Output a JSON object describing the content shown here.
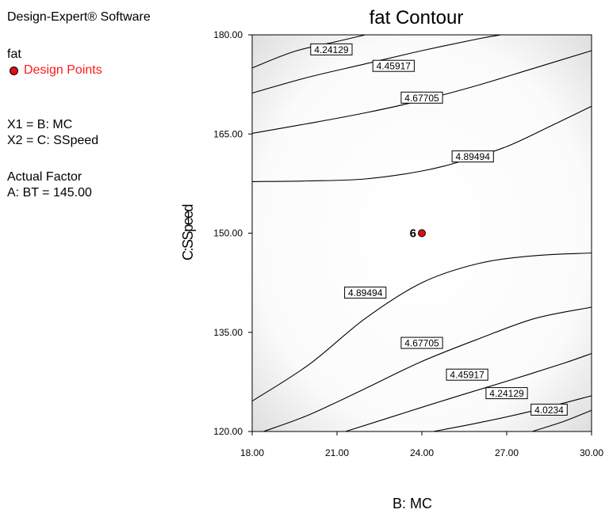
{
  "sidebar": {
    "software": "Design-Expert® Software",
    "response": "fat",
    "legend_label": "Design Points",
    "x1": "X1 = B: MC",
    "x2": "X2 = C: SSpeed",
    "actual_factor_title": "Actual Factor",
    "actual_factor_value": "A: BT = 145.00"
  },
  "colors": {
    "design_point": "#e01010",
    "legend_text": "#ff1a1a",
    "contour": "#000000"
  },
  "chart_data": {
    "type": "contour",
    "title": "fat Contour",
    "xlabel": "B: MC",
    "ylabel": "C:SSpeed",
    "xlim": [
      18,
      30
    ],
    "ylim": [
      120,
      180
    ],
    "xticks": [
      "18.00",
      "21.00",
      "24.00",
      "27.00",
      "30.00"
    ],
    "yticks": [
      "120.00",
      "135.00",
      "150.00",
      "165.00",
      "180.00"
    ],
    "contours": [
      {
        "level": "4.24129",
        "points": [
          [
            18.0,
            175.0
          ],
          [
            19.5,
            177.5
          ],
          [
            21.0,
            179.0
          ],
          [
            22.0,
            180.0
          ]
        ]
      },
      {
        "level": "4.45917",
        "points": [
          [
            18.0,
            171.2
          ],
          [
            20.0,
            173.6
          ],
          [
            22.0,
            175.6
          ],
          [
            24.0,
            177.6
          ],
          [
            26.0,
            179.4
          ],
          [
            26.8,
            180.0
          ]
        ]
      },
      {
        "level": "4.67705",
        "points": [
          [
            18.0,
            165.1
          ],
          [
            20.0,
            166.6
          ],
          [
            22.0,
            168.2
          ],
          [
            24.0,
            170.1
          ],
          [
            26.0,
            172.4
          ],
          [
            28.0,
            175.0
          ],
          [
            30.0,
            177.6
          ]
        ]
      },
      {
        "level": "4.89494",
        "points": [
          [
            18.0,
            157.8
          ],
          [
            20.0,
            157.9
          ],
          [
            22.0,
            158.2
          ],
          [
            24.0,
            159.4
          ],
          [
            25.5,
            161.0
          ],
          [
            27.0,
            163.1
          ],
          [
            28.5,
            166.1
          ],
          [
            30.0,
            169.2
          ]
        ]
      },
      {
        "level": "4.89494",
        "points": [
          [
            18.0,
            124.6
          ],
          [
            20.0,
            130.1
          ],
          [
            22.0,
            137.1
          ],
          [
            24.0,
            142.5
          ],
          [
            26.0,
            145.4
          ],
          [
            28.0,
            146.6
          ],
          [
            30.0,
            147.0
          ]
        ]
      },
      {
        "level": "4.67705",
        "points": [
          [
            18.4,
            120.0
          ],
          [
            20.0,
            122.5
          ],
          [
            22.0,
            126.5
          ],
          [
            24.0,
            130.6
          ],
          [
            26.0,
            134.0
          ],
          [
            28.0,
            137.1
          ],
          [
            30.0,
            138.8
          ]
        ]
      },
      {
        "level": "4.45917",
        "points": [
          [
            21.3,
            120.0
          ],
          [
            23.0,
            122.3
          ],
          [
            25.0,
            125.0
          ],
          [
            27.0,
            127.6
          ],
          [
            29.0,
            130.3
          ],
          [
            30.0,
            131.8
          ]
        ]
      },
      {
        "level": "4.24129",
        "points": [
          [
            24.4,
            120.0
          ],
          [
            26.0,
            121.3
          ],
          [
            28.0,
            123.2
          ],
          [
            30.0,
            125.4
          ]
        ]
      },
      {
        "level": "4.0234",
        "points": [
          [
            27.9,
            120.0
          ],
          [
            29.0,
            121.5
          ],
          [
            30.0,
            123.2
          ]
        ]
      }
    ],
    "contour_labels": [
      {
        "text": "4.24129",
        "x": 20.8,
        "y": 177.8
      },
      {
        "text": "4.45917",
        "x": 23.0,
        "y": 175.3
      },
      {
        "text": "4.67705",
        "x": 24.0,
        "y": 170.5
      },
      {
        "text": "4.89494",
        "x": 25.8,
        "y": 161.6
      },
      {
        "text": "4.89494",
        "x": 22.0,
        "y": 141.0
      },
      {
        "text": "4.67705",
        "x": 24.0,
        "y": 133.4
      },
      {
        "text": "4.45917",
        "x": 25.6,
        "y": 128.6
      },
      {
        "text": "4.24129",
        "x": 27.0,
        "y": 125.8
      },
      {
        "text": "4.0234",
        "x": 28.5,
        "y": 123.3
      }
    ],
    "design_points": [
      {
        "x": 24.0,
        "y": 150.0,
        "label": "6"
      }
    ]
  }
}
